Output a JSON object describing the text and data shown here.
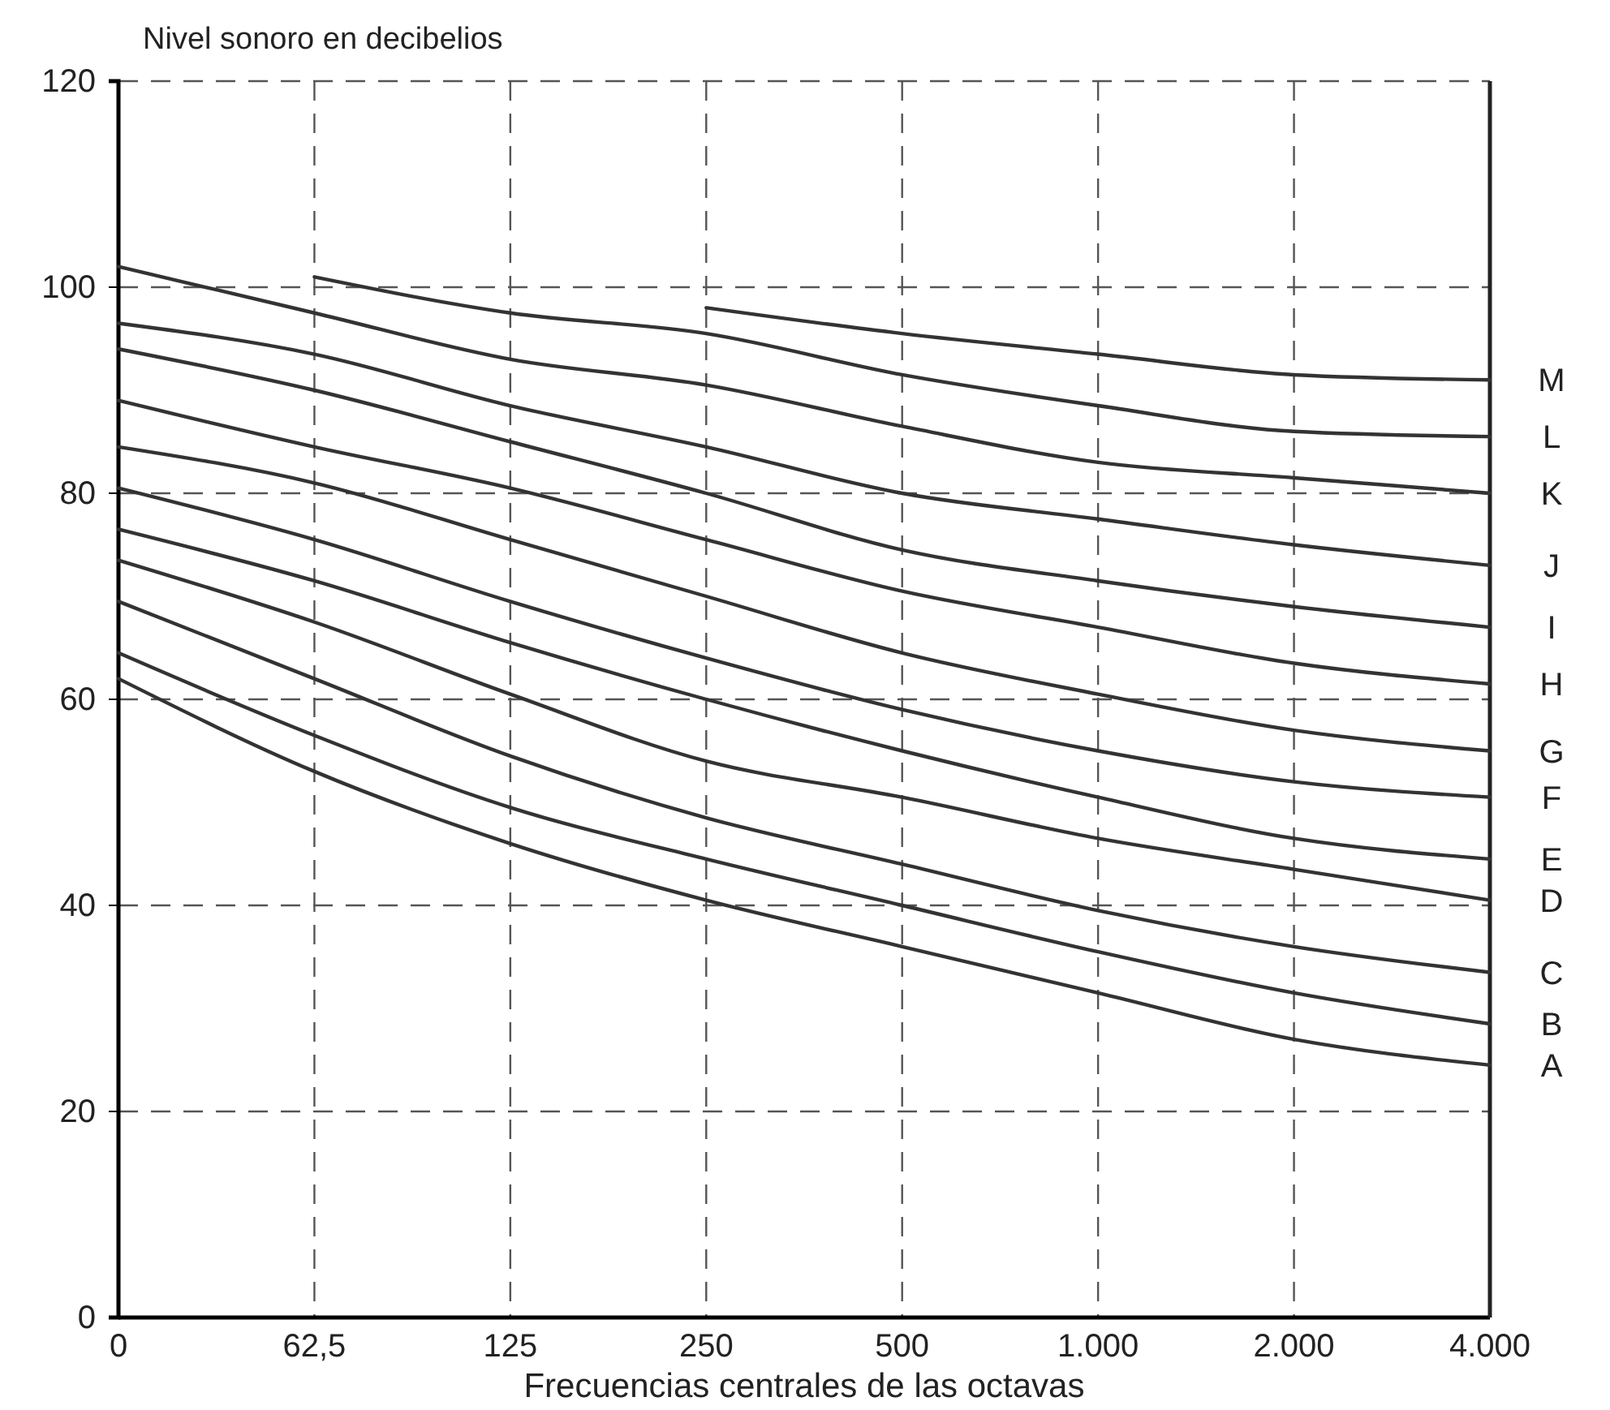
{
  "chart_data": {
    "type": "line",
    "ylabel": "Nivel sonoro en decibelios",
    "xlabel": "Frecuencias centrales de las octavas",
    "categories": [
      "0",
      "62,5",
      "125",
      "250",
      "500",
      "1.000",
      "2.000",
      "4.000"
    ],
    "ylim": [
      0,
      120
    ],
    "yticks": [
      0,
      20,
      40,
      60,
      80,
      100,
      120
    ],
    "grid": true,
    "legend": false,
    "series": [
      {
        "name": "M",
        "color": "#333333",
        "values": [
          null,
          null,
          null,
          98,
          95.5,
          93.5,
          91.5,
          91
        ]
      },
      {
        "name": "L",
        "color": "#333333",
        "values": [
          null,
          101,
          97.5,
          95.5,
          91.5,
          88.5,
          86,
          85.5
        ]
      },
      {
        "name": "K",
        "color": "#333333",
        "values": [
          102,
          97.5,
          93,
          90.5,
          86.5,
          83,
          81.5,
          80
        ]
      },
      {
        "name": "J",
        "color": "#333333",
        "values": [
          96.5,
          93.5,
          88.5,
          84.5,
          80,
          77.5,
          75,
          73
        ]
      },
      {
        "name": "I",
        "color": "#333333",
        "values": [
          94,
          90,
          85,
          80,
          74.5,
          71.5,
          69,
          67
        ]
      },
      {
        "name": "H",
        "color": "#333333",
        "values": [
          89,
          84.5,
          80.5,
          75.5,
          70.5,
          67,
          63.5,
          61.5
        ]
      },
      {
        "name": "G",
        "color": "#333333",
        "values": [
          84.5,
          81,
          75.5,
          70,
          64.5,
          60.5,
          57,
          55
        ]
      },
      {
        "name": "F",
        "color": "#333333",
        "values": [
          80.5,
          75.5,
          69.5,
          64,
          59,
          55,
          52,
          50.5
        ]
      },
      {
        "name": "E",
        "color": "#333333",
        "values": [
          76.5,
          71.5,
          65.5,
          60,
          55,
          50.5,
          46.5,
          44.5
        ]
      },
      {
        "name": "D",
        "color": "#333333",
        "values": [
          73.5,
          67.5,
          60.5,
          54,
          50.5,
          46.5,
          43.5,
          40.5
        ]
      },
      {
        "name": "C",
        "color": "#333333",
        "values": [
          69.5,
          62,
          54.5,
          48.5,
          44,
          39.5,
          36,
          33.5
        ]
      },
      {
        "name": "B",
        "color": "#333333",
        "values": [
          64.5,
          56.5,
          49.5,
          44.5,
          40,
          35.5,
          31.5,
          28.5
        ]
      },
      {
        "name": "A",
        "color": "#333333",
        "values": [
          62,
          53,
          46,
          40.5,
          36,
          31.5,
          27,
          24.5
        ]
      }
    ]
  }
}
